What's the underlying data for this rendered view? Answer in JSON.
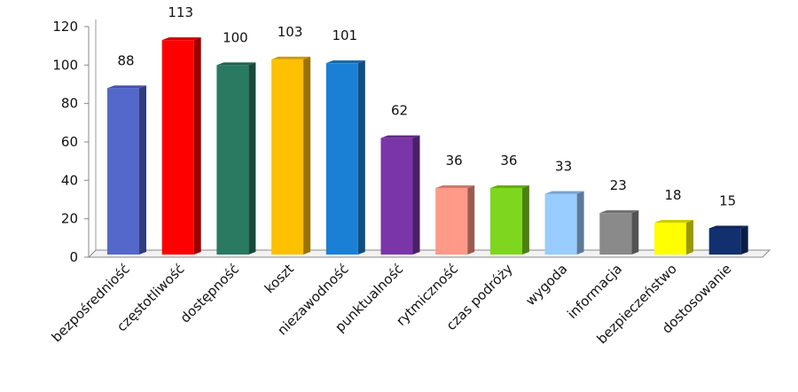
{
  "chart_data": {
    "type": "bar",
    "title": "",
    "xlabel": "",
    "ylabel": "",
    "ylim": [
      0,
      120
    ],
    "yticks": [
      0,
      20,
      40,
      60,
      80,
      100,
      120
    ],
    "grid": false,
    "legend": "none",
    "categories": [
      "bezpośredniość",
      "częstotliwość",
      "dostępność",
      "koszt",
      "niezawodność",
      "punktualność",
      "rytmiczność",
      "czas podróży",
      "wygoda",
      "informacja",
      "bezpieczeństwo",
      "dostosowanie"
    ],
    "values": [
      88,
      113,
      100,
      103,
      101,
      62,
      36,
      36,
      33,
      23,
      18,
      15
    ],
    "colors": [
      "#5468cc",
      "#ff0000",
      "#2a7a62",
      "#ffc000",
      "#1a80d6",
      "#7a35a8",
      "#ff9988",
      "#7fd61e",
      "#99ccff",
      "#8a8a8a",
      "#ffff00",
      "#12306e"
    ]
  }
}
